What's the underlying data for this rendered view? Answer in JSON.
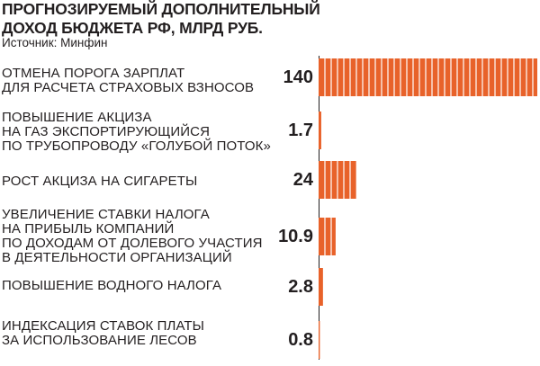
{
  "chart_data": {
    "type": "bar",
    "orientation": "horizontal",
    "title_lines": [
      "ПРОГНОЗИРУЕМЫЙ ДОПОЛНИТЕЛЬНЫЙ",
      "ДОХОД БЮДЖЕТА РФ, МЛРД РУБ."
    ],
    "source": "Источник: Минфин",
    "categories": [
      [
        "ОТМЕНА ПОРОГА ЗАРПЛАТ",
        "ДЛЯ РАСЧЕТА СТРАХОВЫХ ВЗНОСОВ"
      ],
      [
        "ПОВЫШЕНИЕ АКЦИЗА",
        "НА ГАЗ ЭКСПОРТИРУЮЩИЙСЯ",
        "ПО ТРУБОПРОВОДУ «ГОЛУБОЙ ПОТОК»"
      ],
      [
        "РОСТ АКЦИЗА НА СИГАРЕТЫ"
      ],
      [
        "УВЕЛИЧЕНИЕ СТАВКИ НАЛОГА",
        "НА ПРИБЫЛЬ КОМПАНИЙ",
        "ПО ДОХОДАМ ОТ ДОЛЕВОГО УЧАСТИЯ",
        "В ДЕЯТЕЛЬНОСТИ ОРГАНИЗАЦИЙ"
      ],
      [
        "ПОВЫШЕНИЕ ВОДНОГО НАЛОГА"
      ],
      [
        "ИНДЕКСАЦИЯ СТАВОК ПЛАТЫ",
        "ЗА ИСПОЛЬЗОВАНИЕ ЛЕСОВ"
      ]
    ],
    "values": [
      140,
      1.7,
      24,
      10.9,
      2.8,
      0.8
    ],
    "value_labels": [
      "140",
      "1.7",
      "24",
      "10.9",
      "2.8",
      "0.8"
    ],
    "xlim": [
      0,
      140
    ],
    "bar_color": "#e8622a",
    "bar_stripe_color": "#ffffff",
    "text_color": "#231f20",
    "grid": false,
    "legend": "none"
  }
}
